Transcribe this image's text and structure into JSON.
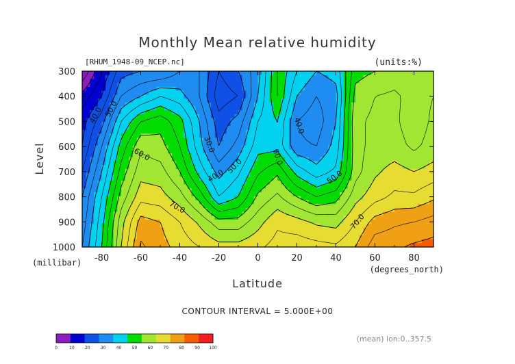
{
  "title": "Monthly Mean relative humidity",
  "file_label": "[RHUM_1948-09_NCEP.nc]",
  "units_label": "(units:%)",
  "contour_note": "CONTOUR INTERVAL = 5.000E+00",
  "footer_note": "(mean) lon:0..357.5",
  "chart_data": {
    "type": "heatmap",
    "title": "Monthly Mean relative humidity",
    "xlabel": "Latitude",
    "ylabel": "Level",
    "x_unit": "(degrees_north)",
    "y_unit": "(millibar)",
    "xlim": [
      -90,
      90
    ],
    "ylim": [
      1000,
      300
    ],
    "x_ticks": [
      -80,
      -60,
      -40,
      -20,
      0,
      20,
      40,
      60,
      80
    ],
    "x_tick_labels": [
      "-80",
      "-60",
      "-40",
      "-20",
      "0",
      "20",
      "40",
      "60",
      "80"
    ],
    "y_ticks": [
      300,
      400,
      500,
      600,
      700,
      800,
      900,
      1000
    ],
    "y_tick_labels": [
      "300",
      "400",
      "500",
      "600",
      "700",
      "800",
      "900",
      "1000"
    ],
    "x": [
      -90,
      -80,
      -70,
      -60,
      -50,
      -40,
      -30,
      -20,
      -10,
      0,
      10,
      20,
      30,
      40,
      50,
      60,
      70,
      80,
      90
    ],
    "y": [
      300,
      400,
      500,
      600,
      700,
      800,
      900,
      1000
    ],
    "z": [
      [
        0,
        15,
        28,
        30,
        30,
        35,
        35,
        25,
        30,
        38,
        55,
        45,
        40,
        42,
        58,
        60,
        62,
        60,
        63
      ],
      [
        12,
        20,
        35,
        40,
        45,
        42,
        35,
        22,
        25,
        40,
        55,
        40,
        35,
        38,
        62,
        65,
        66,
        63,
        65
      ],
      [
        18,
        28,
        45,
        55,
        58,
        52,
        40,
        27,
        32,
        45,
        50,
        35,
        32,
        40,
        64,
        66,
        66,
        62,
        66
      ],
      [
        20,
        35,
        52,
        64,
        62,
        55,
        42,
        30,
        37,
        48,
        48,
        36,
        35,
        42,
        63,
        67,
        67,
        64,
        67
      ],
      [
        25,
        40,
        57,
        68,
        67,
        60,
        48,
        38,
        44,
        54,
        59,
        48,
        42,
        46,
        63,
        69,
        72,
        70,
        72
      ],
      [
        30,
        45,
        62,
        73,
        72,
        67,
        58,
        45,
        50,
        61,
        66,
        60,
        55,
        58,
        68,
        73,
        76,
        76,
        79
      ],
      [
        32,
        48,
        68,
        82,
        80,
        75,
        69,
        62,
        62,
        68,
        74,
        72,
        69,
        68,
        75,
        82,
        84,
        85,
        87
      ],
      [
        35,
        50,
        70,
        86,
        82,
        78,
        75,
        72,
        72,
        74,
        77,
        78,
        77,
        76,
        80,
        88,
        89,
        91,
        92
      ]
    ],
    "levels": [
      0,
      10,
      20,
      30,
      40,
      50,
      60,
      70,
      80,
      90,
      100
    ],
    "colors": [
      "#8c1ebe",
      "#0000d2",
      "#0f50e6",
      "#1e8cf0",
      "#00d2f0",
      "#00dc00",
      "#a0e632",
      "#e6dc32",
      "#f0a014",
      "#fa5a00",
      "#f01e1e"
    ],
    "contour_interval": 5,
    "contour_labels": [
      "40.0",
      "50.0",
      "60.0",
      "70.0",
      "30.0",
      "40.0",
      "50.0",
      "60.0",
      "40.0",
      "50.0",
      "70.0"
    ],
    "colorbar_labels": [
      "0",
      "10",
      "20",
      "30",
      "40",
      "50",
      "60",
      "70",
      "80",
      "90",
      "100"
    ]
  }
}
